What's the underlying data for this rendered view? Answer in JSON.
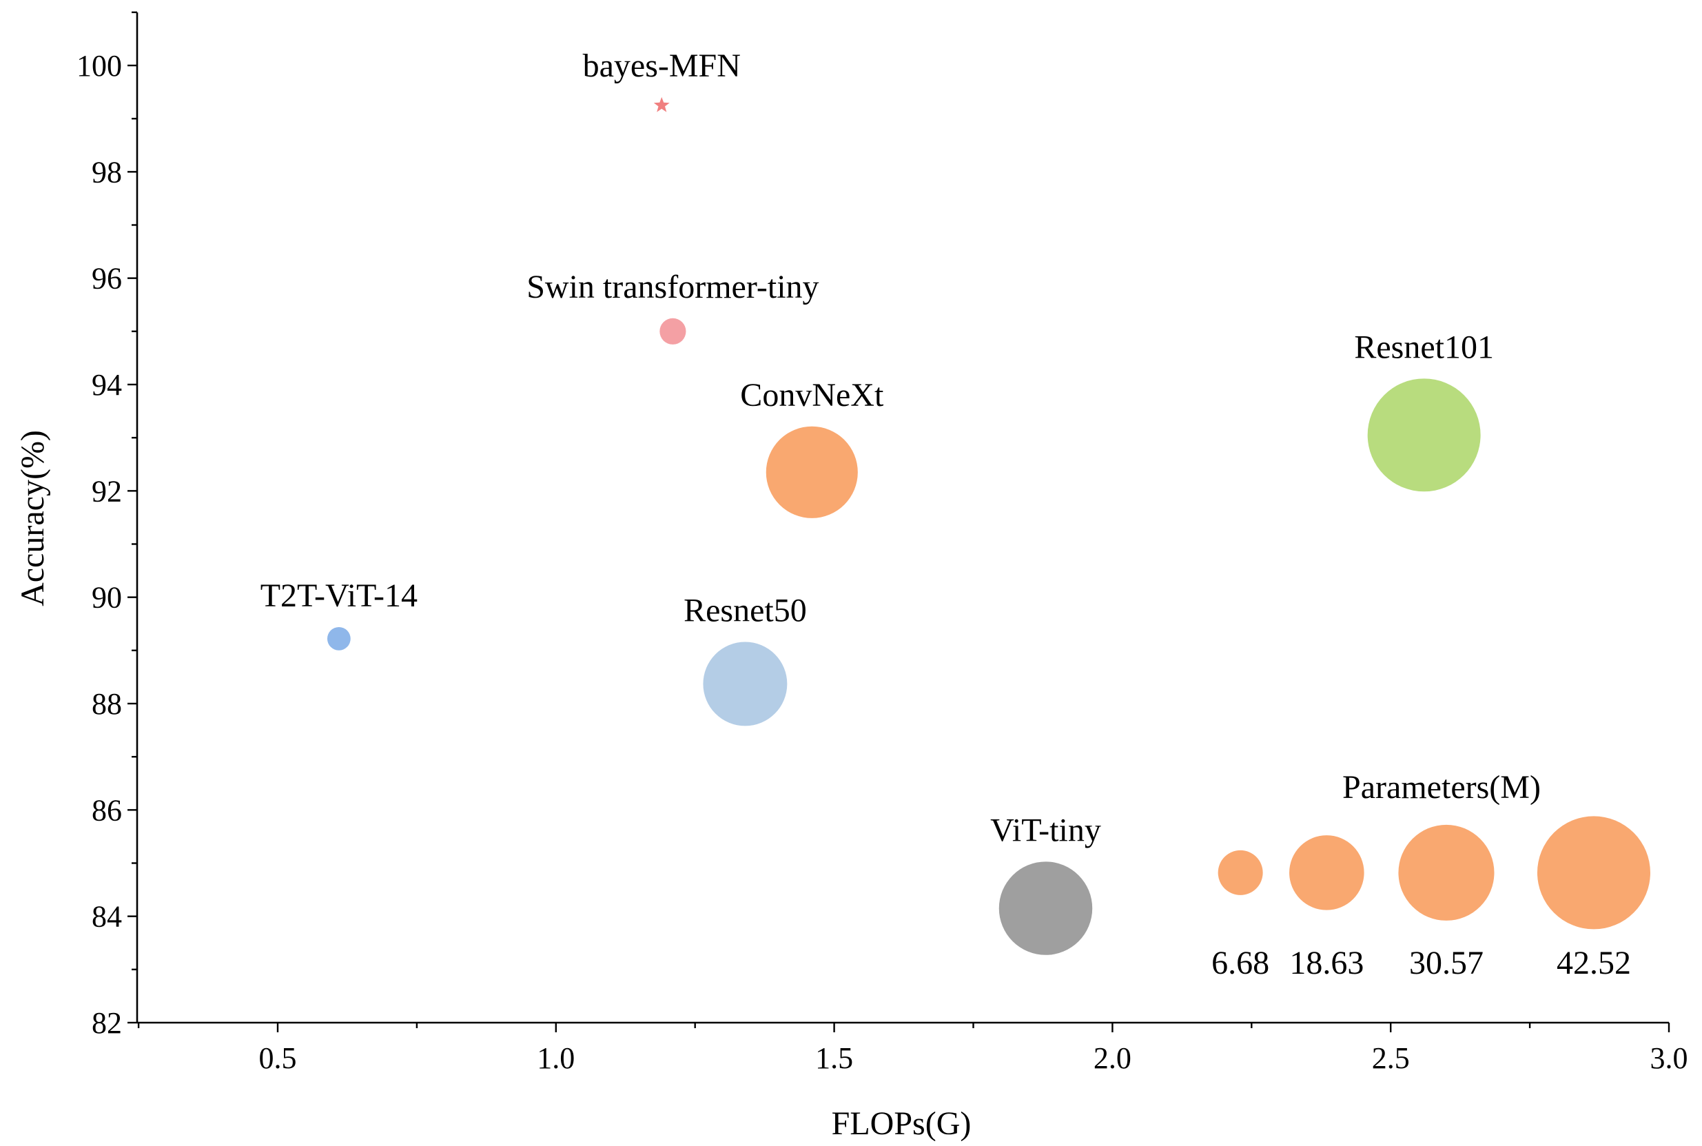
{
  "chart_data": {
    "type": "scatter",
    "subtype": "bubble",
    "title": "",
    "xlabel": "FLOPs(G)",
    "ylabel": "Accuracy(%)",
    "xlim": [
      0.25,
      3.0
    ],
    "ylim": [
      82,
      101
    ],
    "xticks": [
      0.5,
      1.0,
      1.5,
      2.0,
      2.5,
      3.0
    ],
    "xtick_labels": [
      "0.5",
      "1.0",
      "1.5",
      "2.0",
      "2.5",
      "3.0"
    ],
    "yticks": [
      82,
      84,
      86,
      88,
      90,
      92,
      94,
      96,
      98,
      100
    ],
    "ytick_labels": [
      "82",
      "84",
      "86",
      "88",
      "90",
      "92",
      "94",
      "96",
      "98",
      "100"
    ],
    "grid": false,
    "points": [
      {
        "name": "bayes-MFN",
        "x": 1.19,
        "y": 99.25,
        "params": 0.9,
        "marker": "star",
        "color": "#f08080"
      },
      {
        "name": "Swin transformer-tiny",
        "x": 1.21,
        "y": 95.0,
        "params": 2.3,
        "marker": "circle",
        "color": "#f4a0a4"
      },
      {
        "name": "ConvNeXt",
        "x": 1.46,
        "y": 92.35,
        "params": 28.0,
        "marker": "circle",
        "color": "#f9a870"
      },
      {
        "name": "Resnet101",
        "x": 2.56,
        "y": 93.05,
        "params": 42.5,
        "marker": "circle",
        "color": "#b8dc7e"
      },
      {
        "name": "T2T-ViT-14",
        "x": 0.61,
        "y": 89.22,
        "params": 1.8,
        "marker": "circle",
        "color": "#8fb7ea"
      },
      {
        "name": "Resnet50",
        "x": 1.34,
        "y": 88.37,
        "params": 23.5,
        "marker": "circle",
        "color": "#b4cde6"
      },
      {
        "name": "ViT-tiny",
        "x": 1.88,
        "y": 84.15,
        "params": 29.0,
        "marker": "circle",
        "color": "#9f9f9f"
      }
    ],
    "size_legend": {
      "title": "Parameters(M)",
      "y": 84.82,
      "color": "#f9a870",
      "items": [
        {
          "label": "6.68",
          "x": 2.23,
          "params": 6.68
        },
        {
          "label": "18.63",
          "x": 2.385,
          "params": 18.63
        },
        {
          "label": "30.57",
          "x": 2.6,
          "params": 30.57
        },
        {
          "label": "42.52",
          "x": 2.865,
          "params": 42.52
        }
      ]
    }
  }
}
